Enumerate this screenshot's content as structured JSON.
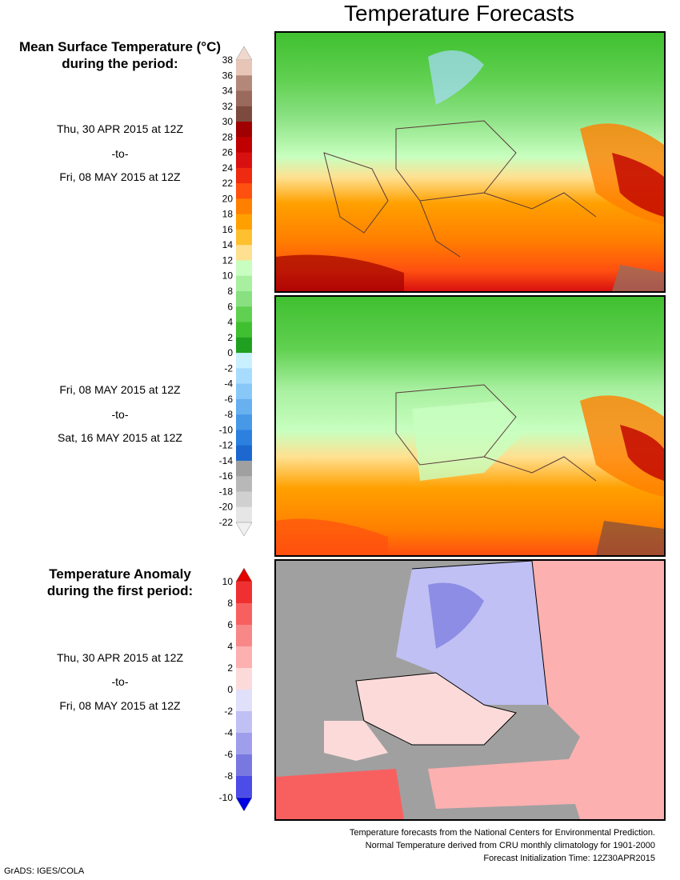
{
  "title": "Temperature Forecasts",
  "mean_temp": {
    "heading_line1": "Mean Surface Temperature (°C)",
    "heading_line2": "during the period:",
    "period1": {
      "start": "Thu, 30 APR 2015 at 12Z",
      "sep": "-to-",
      "end": "Fri, 08 MAY 2015 at 12Z"
    },
    "period2": {
      "start": "Fri, 08 MAY 2015 at 12Z",
      "sep": "-to-",
      "end": "Sat, 16 MAY 2015 at 12Z"
    },
    "scale_ticks": [
      "38",
      "36",
      "34",
      "32",
      "30",
      "28",
      "26",
      "24",
      "22",
      "20",
      "18",
      "16",
      "14",
      "12",
      "10",
      "8",
      "6",
      "4",
      "2",
      "0",
      "-2",
      "-4",
      "-6",
      "-8",
      "-10",
      "-12",
      "-14",
      "-16",
      "-18",
      "-20",
      "-22"
    ],
    "scale_colors": [
      "#e7c6b8",
      "#b48878",
      "#9a6a5c",
      "#7c4a3e",
      "#a00000",
      "#c00000",
      "#d81010",
      "#ee2a10",
      "#ff5010",
      "#ff8000",
      "#ffa000",
      "#ffc030",
      "#ffe090",
      "#c8ffc0",
      "#a8f0a0",
      "#88e080",
      "#60d050",
      "#40c030",
      "#20a020",
      "#c8f0ff",
      "#a8dcff",
      "#88c8f8",
      "#68b0f0",
      "#4898e8",
      "#2c80e0",
      "#1c68d0",
      "#a0a0a0",
      "#b8b8b8",
      "#d0d0d0",
      "#e6e6e6"
    ],
    "scale_top_color": "#f0d8cc",
    "scale_bottom_color": "#f0f0f0"
  },
  "anomaly": {
    "heading_line1": "Temperature Anomaly",
    "heading_line2": "during the first period:",
    "period": {
      "start": "Thu, 30 APR 2015 at 12Z",
      "sep": "-to-",
      "end": "Fri, 08 MAY 2015 at 12Z"
    },
    "scale_ticks": [
      "10",
      "8",
      "6",
      "4",
      "2",
      "0",
      "-2",
      "-4",
      "-6",
      "-8",
      "-10"
    ],
    "scale_colors": [
      "#f03030",
      "#f86060",
      "#f88888",
      "#fcb0b0",
      "#fddada",
      "#e0e0fb",
      "#c0c0f4",
      "#9e9eec",
      "#7878e0",
      "#4c4ce8"
    ],
    "scale_top_color": "#e00000",
    "scale_bottom_color": "#0000e0"
  },
  "footer": {
    "line1": "Temperature forecasts from the National Centers for Environmental Prediction.",
    "line2": "Normal Temperature derived from CRU monthly climatology for 1901-2000",
    "line3": "Forecast Initialization Time: 12Z30APR2015"
  },
  "credit": "GrADS: IGES/COLA"
}
